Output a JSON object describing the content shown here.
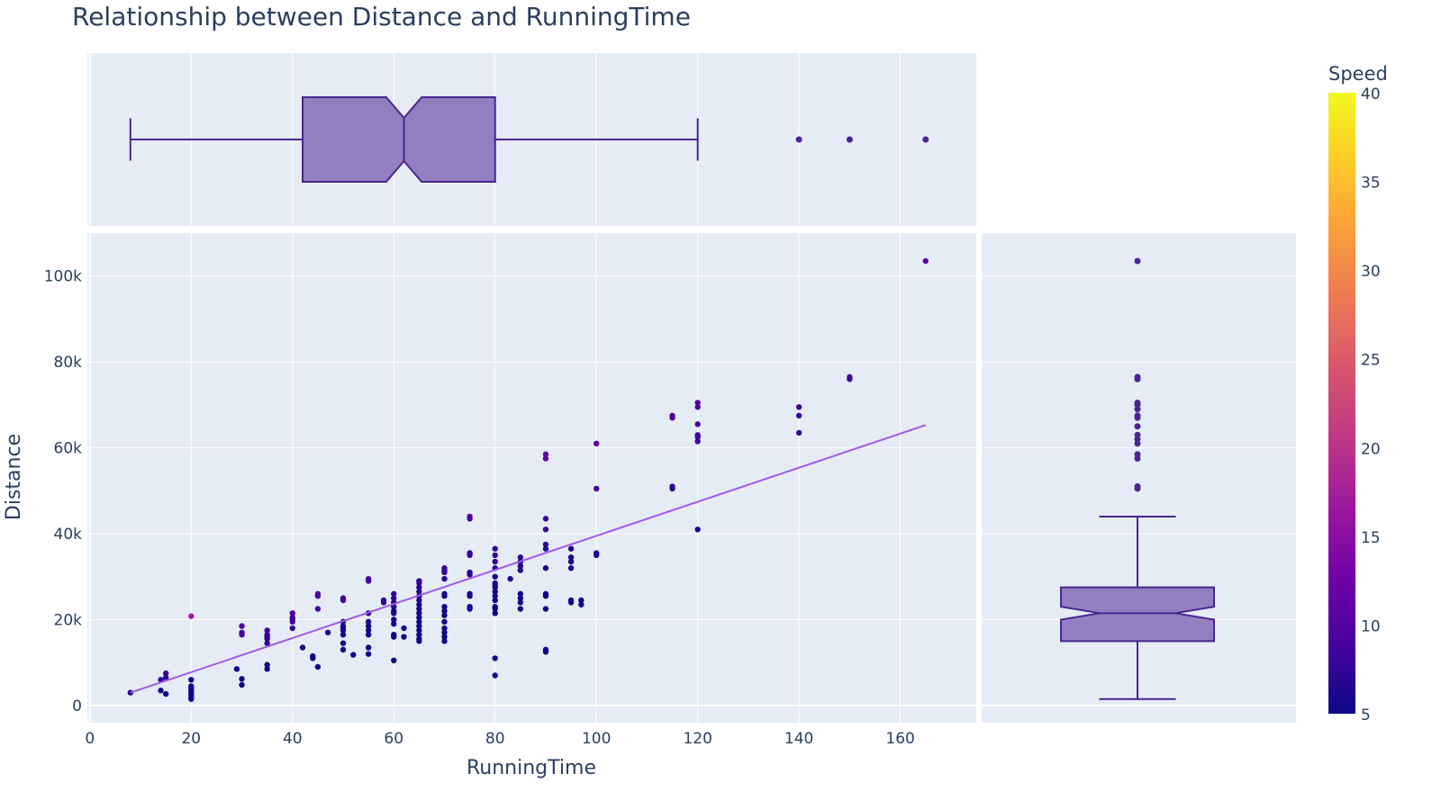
{
  "chart_data": {
    "type": "scatter",
    "title": "Relationship between Distance and RunningTime",
    "xlabel": "RunningTime",
    "ylabel": "Distance",
    "xlim": [
      -0.5,
      175
    ],
    "ylim": [
      -4000,
      110000
    ],
    "xticks": [
      0,
      20,
      40,
      60,
      80,
      100,
      120,
      140,
      160
    ],
    "yticks": [
      0,
      20000,
      40000,
      60000,
      80000,
      100000
    ],
    "ytick_labels": [
      "0",
      "20k",
      "40k",
      "60k",
      "80k",
      "100k"
    ],
    "grid": true,
    "colorbar": {
      "title": "Speed",
      "min": 5,
      "max": 40,
      "ticks": [
        5,
        10,
        15,
        20,
        25,
        30,
        35,
        40
      ],
      "colorscale": [
        "#0d0887",
        "#46039f",
        "#7201a8",
        "#9c179e",
        "#bd3786",
        "#d8576b",
        "#ed7953",
        "#fb9f3a",
        "#fdca26",
        "#f0f921"
      ]
    },
    "trendline": {
      "x": [
        8,
        165
      ],
      "y": [
        3000,
        65300
      ]
    },
    "marginal_x_box": {
      "min": 8,
      "q1": 42,
      "median": 62,
      "q3": 80,
      "max": 120,
      "notch_low": 58.5,
      "notch_high": 65.5,
      "outliers": [
        140,
        150,
        165
      ]
    },
    "marginal_y_box": {
      "min": 1500,
      "q1": 15000,
      "median": 21500,
      "q3": 27500,
      "max": 44000,
      "notch_low": 20000,
      "notch_high": 23000,
      "outliers": [
        50500,
        51000,
        57500,
        58500,
        61000,
        62000,
        63000,
        65000,
        67000,
        67500,
        69000,
        70000,
        70500,
        76000,
        76500,
        103500
      ]
    },
    "points": [
      [
        8,
        3000
      ],
      [
        14,
        3500
      ],
      [
        14,
        6000
      ],
      [
        15,
        2700
      ],
      [
        15,
        6500
      ],
      [
        15,
        7500
      ],
      [
        20,
        1500
      ],
      [
        20,
        2000
      ],
      [
        20,
        2500
      ],
      [
        20,
        3000
      ],
      [
        20,
        3500
      ],
      [
        20,
        4000
      ],
      [
        20,
        4500
      ],
      [
        20,
        6000
      ],
      [
        20,
        20800
      ],
      [
        29,
        8500
      ],
      [
        30,
        4800
      ],
      [
        30,
        6200
      ],
      [
        30,
        16500
      ],
      [
        30,
        17000
      ],
      [
        30,
        18500
      ],
      [
        35,
        8500
      ],
      [
        35,
        9500
      ],
      [
        35,
        14500
      ],
      [
        35,
        15500
      ],
      [
        35,
        16000
      ],
      [
        35,
        16500
      ],
      [
        35,
        17500
      ],
      [
        40,
        18000
      ],
      [
        40,
        19500
      ],
      [
        40,
        20000
      ],
      [
        40,
        20500
      ],
      [
        40,
        21500
      ],
      [
        42,
        13500
      ],
      [
        44,
        11000
      ],
      [
        44,
        11500
      ],
      [
        45,
        9000
      ],
      [
        45,
        22500
      ],
      [
        45,
        25500
      ],
      [
        45,
        26000
      ],
      [
        47,
        17000
      ],
      [
        50,
        13000
      ],
      [
        50,
        14500
      ],
      [
        50,
        16500
      ],
      [
        50,
        17500
      ],
      [
        50,
        18000
      ],
      [
        50,
        18500
      ],
      [
        50,
        19500
      ],
      [
        50,
        24500
      ],
      [
        50,
        25000
      ],
      [
        52,
        11800
      ],
      [
        55,
        12000
      ],
      [
        55,
        13500
      ],
      [
        55,
        16500
      ],
      [
        55,
        17500
      ],
      [
        55,
        18500
      ],
      [
        55,
        19500
      ],
      [
        55,
        21500
      ],
      [
        55,
        29000
      ],
      [
        55,
        29500
      ],
      [
        58,
        24000
      ],
      [
        58,
        24500
      ],
      [
        60,
        10500
      ],
      [
        60,
        16000
      ],
      [
        60,
        16500
      ],
      [
        60,
        19000
      ],
      [
        60,
        20000
      ],
      [
        60,
        21500
      ],
      [
        60,
        22000
      ],
      [
        60,
        23000
      ],
      [
        60,
        24000
      ],
      [
        60,
        25000
      ],
      [
        60,
        26000
      ],
      [
        62,
        16000
      ],
      [
        62,
        18000
      ],
      [
        65,
        15000
      ],
      [
        65,
        15500
      ],
      [
        65,
        16500
      ],
      [
        65,
        17500
      ],
      [
        65,
        18500
      ],
      [
        65,
        19500
      ],
      [
        65,
        20500
      ],
      [
        65,
        21500
      ],
      [
        65,
        22500
      ],
      [
        65,
        23500
      ],
      [
        65,
        24500
      ],
      [
        65,
        25500
      ],
      [
        65,
        26500
      ],
      [
        65,
        27500
      ],
      [
        65,
        28500
      ],
      [
        65,
        29000
      ],
      [
        70,
        15000
      ],
      [
        70,
        16000
      ],
      [
        70,
        17000
      ],
      [
        70,
        18000
      ],
      [
        70,
        19500
      ],
      [
        70,
        21000
      ],
      [
        70,
        22000
      ],
      [
        70,
        23000
      ],
      [
        70,
        25500
      ],
      [
        70,
        26000
      ],
      [
        70,
        29500
      ],
      [
        70,
        31000
      ],
      [
        70,
        31500
      ],
      [
        70,
        32000
      ],
      [
        75,
        22500
      ],
      [
        75,
        23000
      ],
      [
        75,
        25500
      ],
      [
        75,
        26000
      ],
      [
        75,
        30500
      ],
      [
        75,
        31000
      ],
      [
        75,
        35000
      ],
      [
        75,
        35500
      ],
      [
        75,
        43500
      ],
      [
        75,
        44000
      ],
      [
        80,
        7000
      ],
      [
        80,
        11000
      ],
      [
        80,
        21500
      ],
      [
        80,
        22500
      ],
      [
        80,
        23000
      ],
      [
        80,
        24500
      ],
      [
        80,
        25500
      ],
      [
        80,
        26500
      ],
      [
        80,
        27500
      ],
      [
        80,
        28000
      ],
      [
        80,
        28500
      ],
      [
        80,
        30000
      ],
      [
        80,
        32000
      ],
      [
        80,
        33500
      ],
      [
        80,
        35000
      ],
      [
        80,
        36500
      ],
      [
        83,
        29500
      ],
      [
        85,
        22500
      ],
      [
        85,
        24000
      ],
      [
        85,
        25000
      ],
      [
        85,
        26000
      ],
      [
        85,
        31500
      ],
      [
        85,
        32500
      ],
      [
        85,
        33500
      ],
      [
        85,
        34500
      ],
      [
        90,
        12500
      ],
      [
        90,
        13000
      ],
      [
        90,
        22500
      ],
      [
        90,
        25500
      ],
      [
        90,
        26000
      ],
      [
        90,
        32000
      ],
      [
        90,
        36500
      ],
      [
        90,
        37500
      ],
      [
        90,
        41000
      ],
      [
        90,
        43500
      ],
      [
        90,
        57500
      ],
      [
        90,
        58500
      ],
      [
        95,
        24000
      ],
      [
        95,
        24500
      ],
      [
        95,
        32000
      ],
      [
        95,
        33500
      ],
      [
        95,
        34500
      ],
      [
        95,
        36500
      ],
      [
        97,
        23500
      ],
      [
        97,
        24500
      ],
      [
        100,
        35000
      ],
      [
        100,
        35500
      ],
      [
        100,
        50500
      ],
      [
        100,
        61000
      ],
      [
        115,
        50500
      ],
      [
        115,
        51000
      ],
      [
        115,
        67000
      ],
      [
        115,
        67500
      ],
      [
        120,
        41000
      ],
      [
        120,
        61500
      ],
      [
        120,
        62500
      ],
      [
        120,
        63000
      ],
      [
        120,
        65500
      ],
      [
        120,
        69500
      ],
      [
        120,
        70500
      ],
      [
        140,
        63500
      ],
      [
        140,
        67500
      ],
      [
        140,
        69500
      ],
      [
        150,
        76000
      ],
      [
        150,
        76500
      ],
      [
        165,
        103500
      ]
    ]
  }
}
